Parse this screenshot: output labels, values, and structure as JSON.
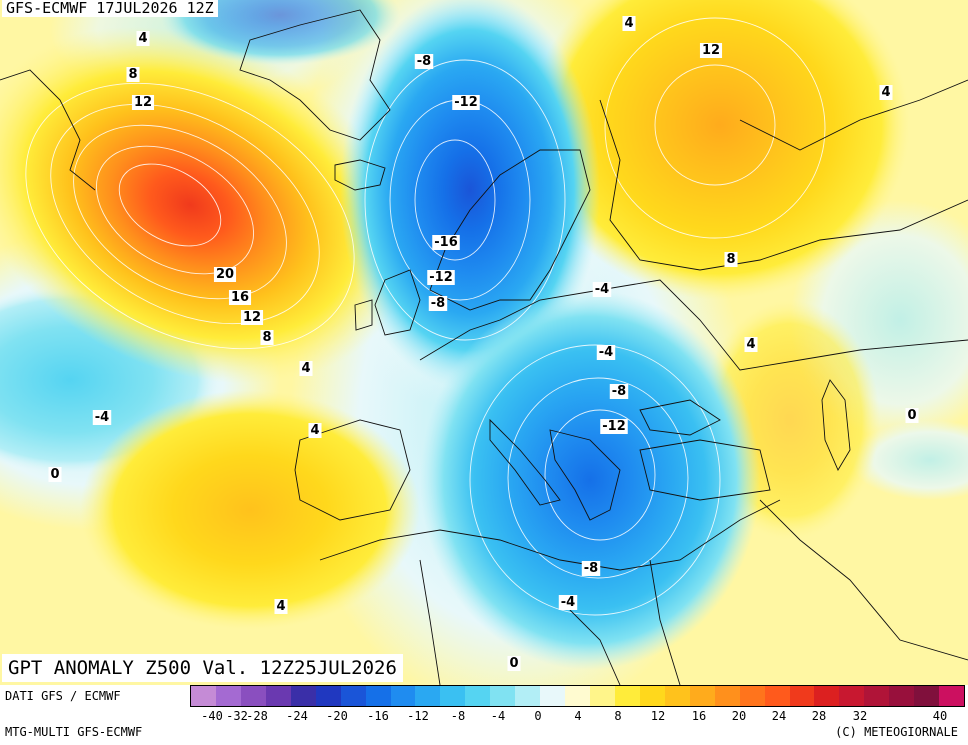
{
  "header": {
    "run_title": "GFS-ECMWF 17JUL2026 12Z",
    "map_title": "GPT ANOMALY Z500 Val. 12Z25JUL2026"
  },
  "footer": {
    "data_source": "DATI GFS / ECMWF",
    "model_label": "MTG-MULTI GFS-ECMWF",
    "copyright": "(C) METEOGIORNALE"
  },
  "legend": {
    "colors": [
      "#c58bd6",
      "#a46ad2",
      "#8a4fbf",
      "#6a39b0",
      "#3a2fa8",
      "#2038c0",
      "#1a55d8",
      "#1570e8",
      "#1f8cf0",
      "#2aa8f2",
      "#3ac0f2",
      "#55d4f2",
      "#80e2f2",
      "#b2eef6",
      "#e8f8fa",
      "#fffbd0",
      "#fff58a",
      "#ffec3a",
      "#ffd81c",
      "#ffc21c",
      "#ffab1c",
      "#ff901c",
      "#ff741c",
      "#ff5a1c",
      "#f03a1c",
      "#dc2020",
      "#c81830",
      "#b01438",
      "#98103c",
      "#80103c",
      "#cc1060"
    ],
    "tick_labels": [
      "-40",
      "-32",
      "-28",
      "-24",
      "-20",
      "-16",
      "-12",
      "-8",
      "-4",
      "0",
      "4",
      "8",
      "12",
      "16",
      "20",
      "24",
      "28",
      "32",
      "40"
    ]
  },
  "contour_labels": [
    {
      "text": "4"
    },
    {
      "text": "8"
    },
    {
      "text": "12"
    },
    {
      "text": "20"
    },
    {
      "text": "16"
    },
    {
      "text": "12"
    },
    {
      "text": "8"
    },
    {
      "text": "4"
    },
    {
      "text": "-4"
    },
    {
      "text": "0"
    },
    {
      "text": "4"
    },
    {
      "text": "4"
    },
    {
      "text": "-8"
    },
    {
      "text": "-12"
    },
    {
      "text": "-16"
    },
    {
      "text": "-12"
    },
    {
      "text": "-8"
    },
    {
      "text": "-4"
    },
    {
      "text": "-4"
    },
    {
      "text": "-8"
    },
    {
      "text": "-12"
    },
    {
      "text": "-8"
    },
    {
      "text": "-4"
    },
    {
      "text": "0"
    },
    {
      "text": "4"
    },
    {
      "text": "12"
    },
    {
      "text": "4"
    },
    {
      "text": "8"
    },
    {
      "text": "4"
    },
    {
      "text": "0"
    }
  ]
}
